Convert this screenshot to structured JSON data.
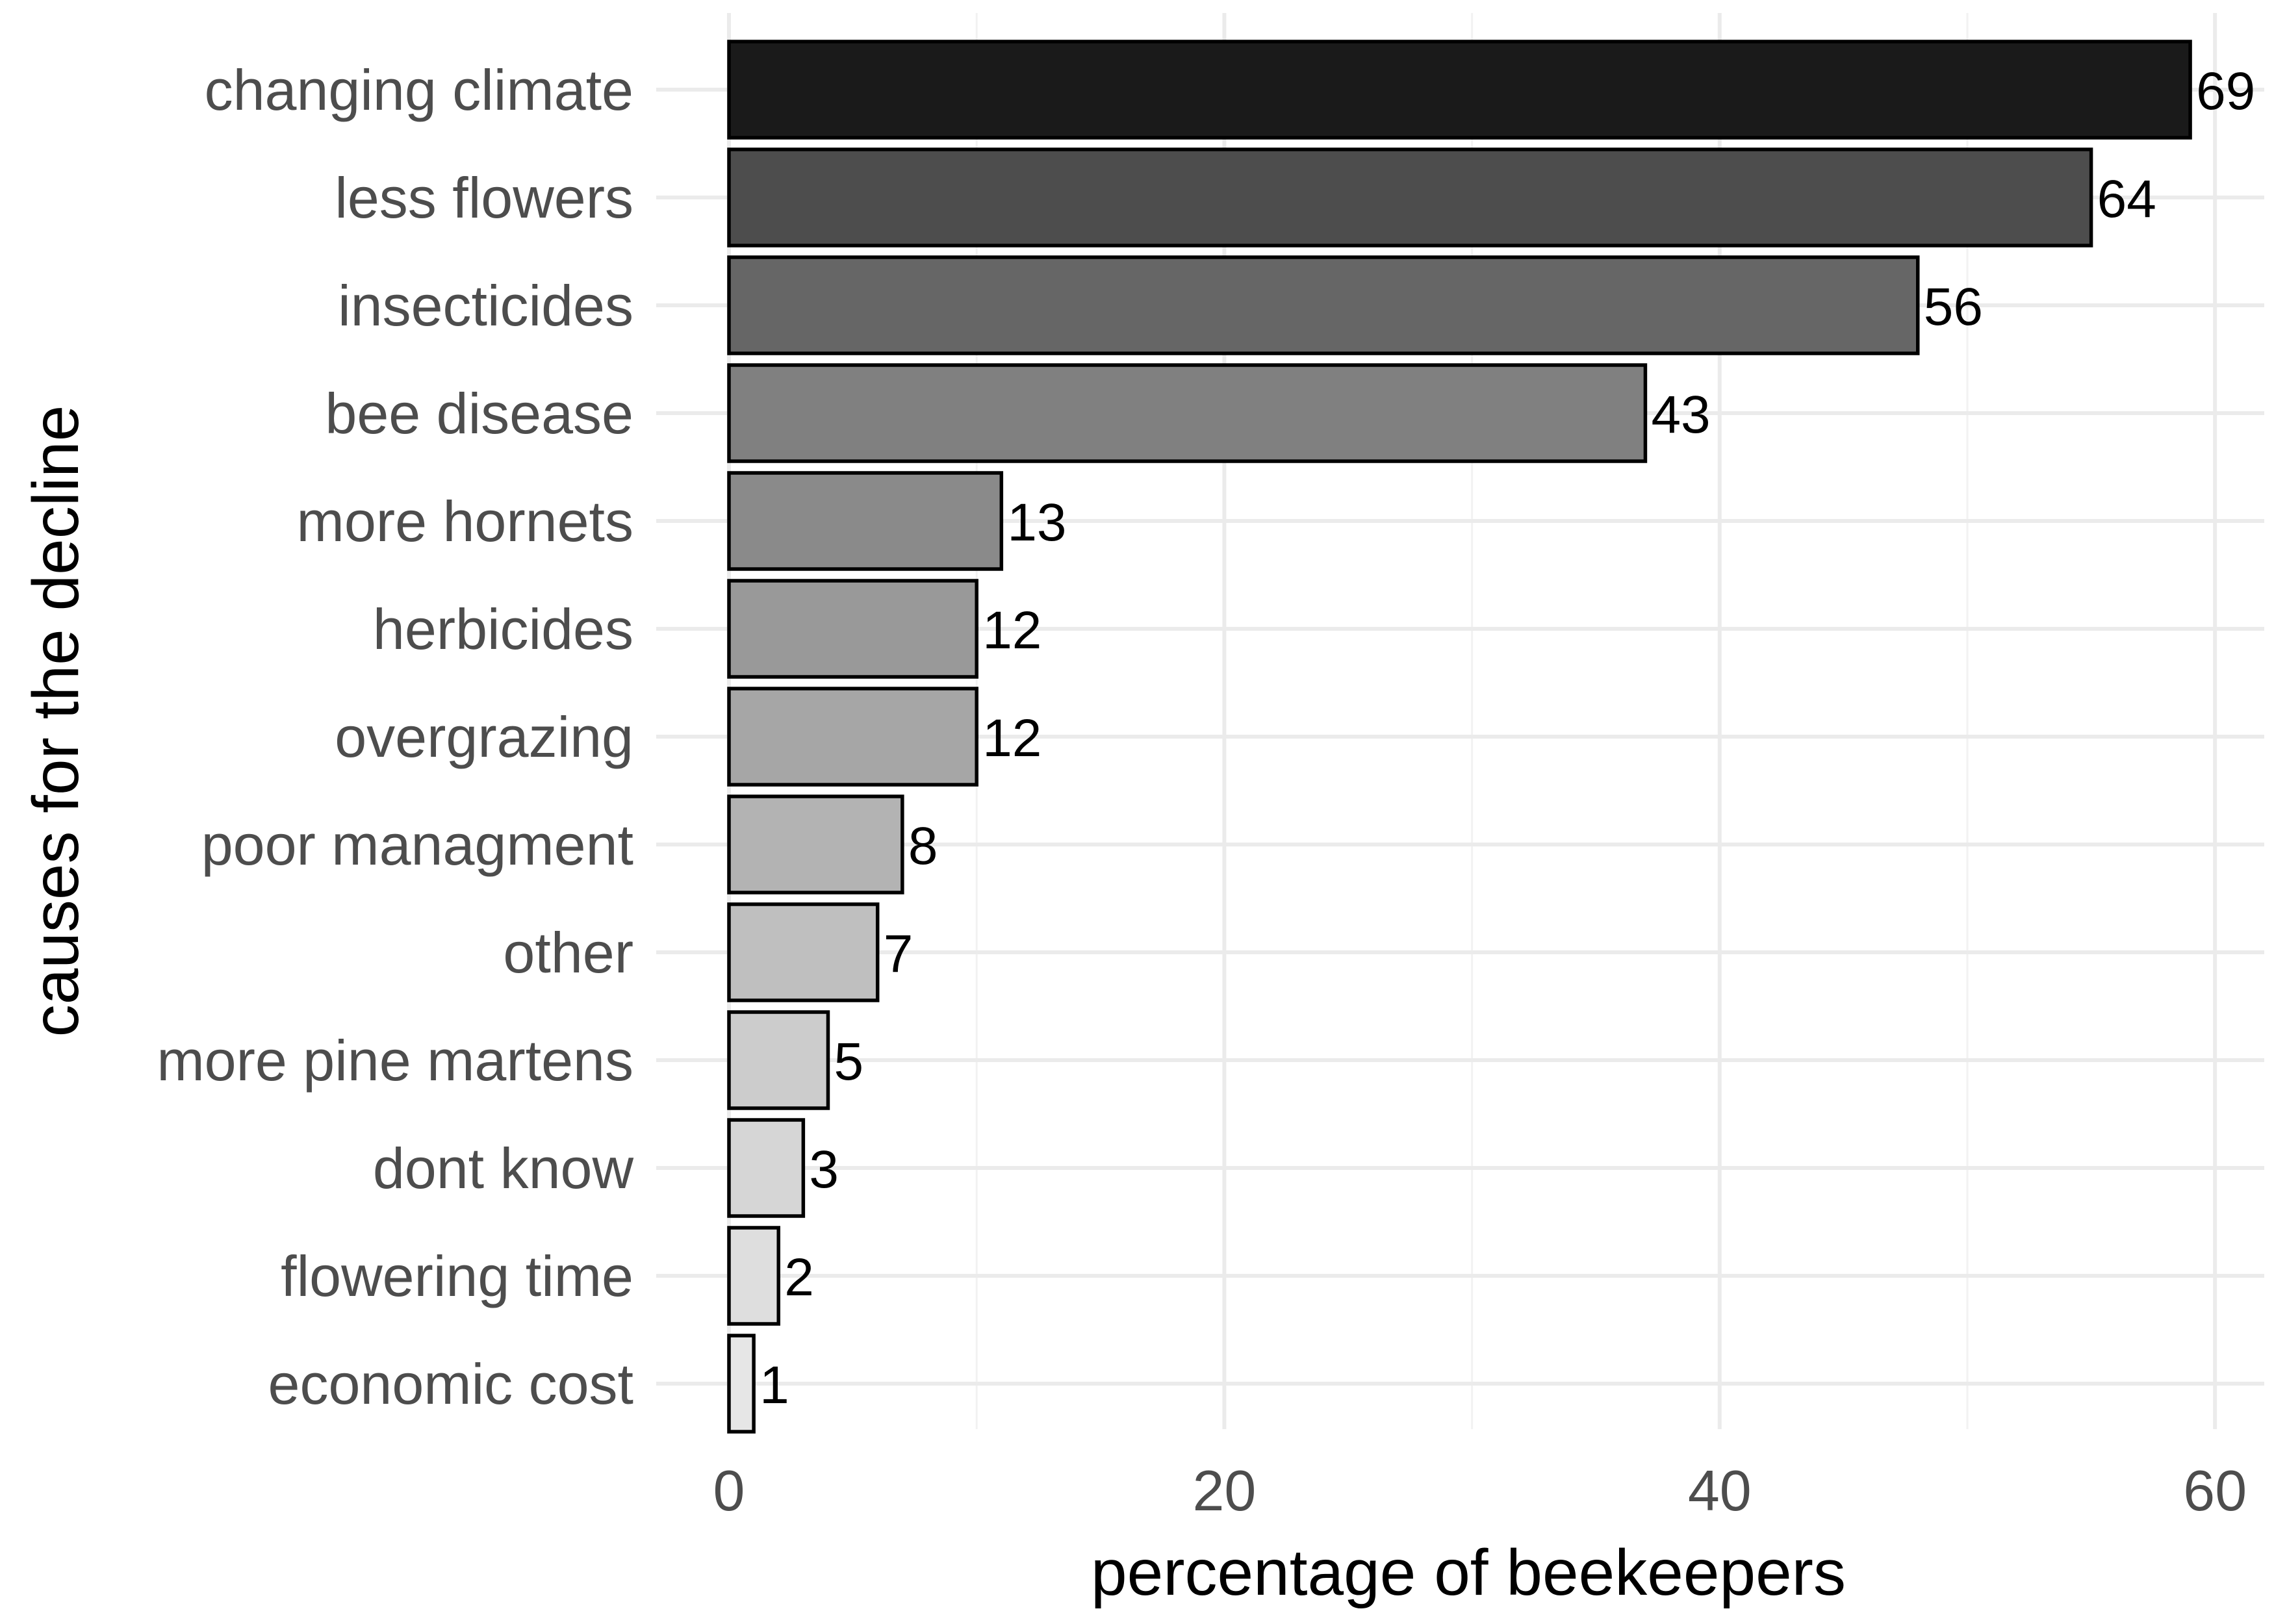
{
  "chart_data": {
    "type": "bar",
    "orientation": "horizontal",
    "xlabel": "percentage of beekeepers",
    "ylabel": "causes for the decline",
    "xlim": [
      0,
      61
    ],
    "xticks": [
      0,
      20,
      40,
      60
    ],
    "grid": true,
    "legend": "none",
    "categories": [
      "changing climate",
      "less flowers",
      "insecticides",
      "bee disease",
      "more hornets",
      "herbicides",
      "overgrazing",
      "poor managment",
      "other",
      "more pine martens",
      "dont know",
      "flowering time",
      "economic cost"
    ],
    "values": [
      59,
      55,
      48,
      37,
      11,
      10,
      10,
      7,
      6,
      4,
      3,
      2,
      1
    ],
    "data_labels": [
      "69",
      "64",
      "56",
      "43",
      "13",
      "12",
      "12",
      "8",
      "7",
      "5",
      "3",
      "2",
      "1"
    ],
    "fill_colors": [
      "#1a1a1a",
      "#4d4d4d",
      "#666666",
      "#808080",
      "#8a8a8a",
      "#999999",
      "#a6a6a6",
      "#b3b3b3",
      "#bfbfbf",
      "#cccccc",
      "#d6d6d6",
      "#dedede",
      "#e6e6e6"
    ]
  }
}
